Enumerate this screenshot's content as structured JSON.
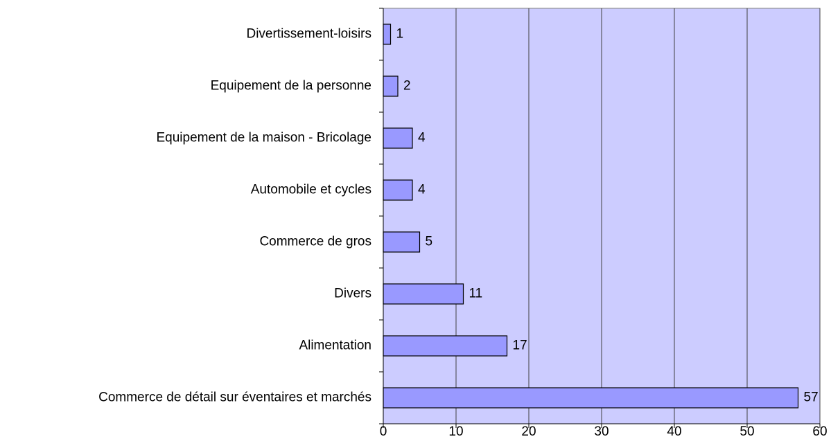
{
  "chart_data": {
    "type": "bar",
    "orientation": "horizontal",
    "categories": [
      "Divertissement-loisirs",
      "Equipement de la personne",
      "Equipement de la maison - Bricolage",
      "Automobile et cycles",
      "Commerce de gros",
      "Divers",
      "Alimentation",
      "Commerce de détail sur éventaires et marchés"
    ],
    "values": [
      1,
      2,
      4,
      4,
      5,
      11,
      17,
      57
    ],
    "color": "#9999ff",
    "plot_background": "#ccccff",
    "xlim": [
      0,
      60
    ],
    "xticks": [
      0,
      10,
      20,
      30,
      40,
      50,
      60
    ],
    "grid": true
  }
}
